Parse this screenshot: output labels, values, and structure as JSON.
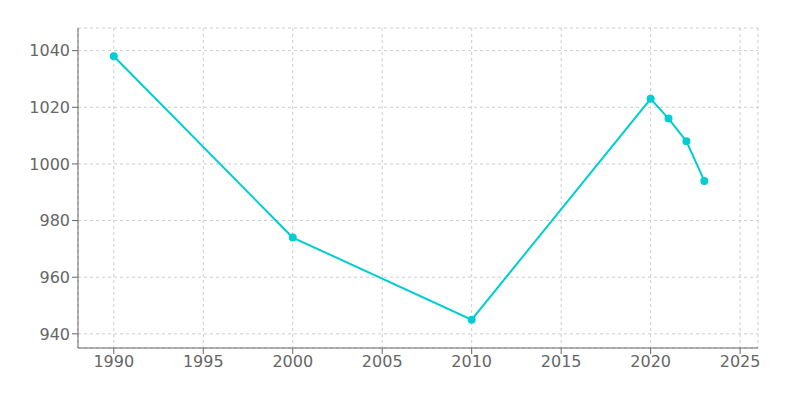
{
  "chart_data": {
    "type": "line",
    "x": [
      1990,
      2000,
      2010,
      2020,
      2021,
      2022,
      2023
    ],
    "values": [
      1038,
      974,
      945,
      1023,
      1016,
      1008,
      994
    ],
    "color": "#00CED1",
    "marker": "o",
    "xlim": [
      1988,
      2026
    ],
    "xticks": [
      1990,
      1995,
      2000,
      2005,
      2010,
      2015,
      2020,
      2025
    ],
    "ylim": [
      935,
      1048
    ],
    "yticks": [
      940,
      960,
      980,
      1000,
      1020,
      1040
    ],
    "grid": true
  }
}
